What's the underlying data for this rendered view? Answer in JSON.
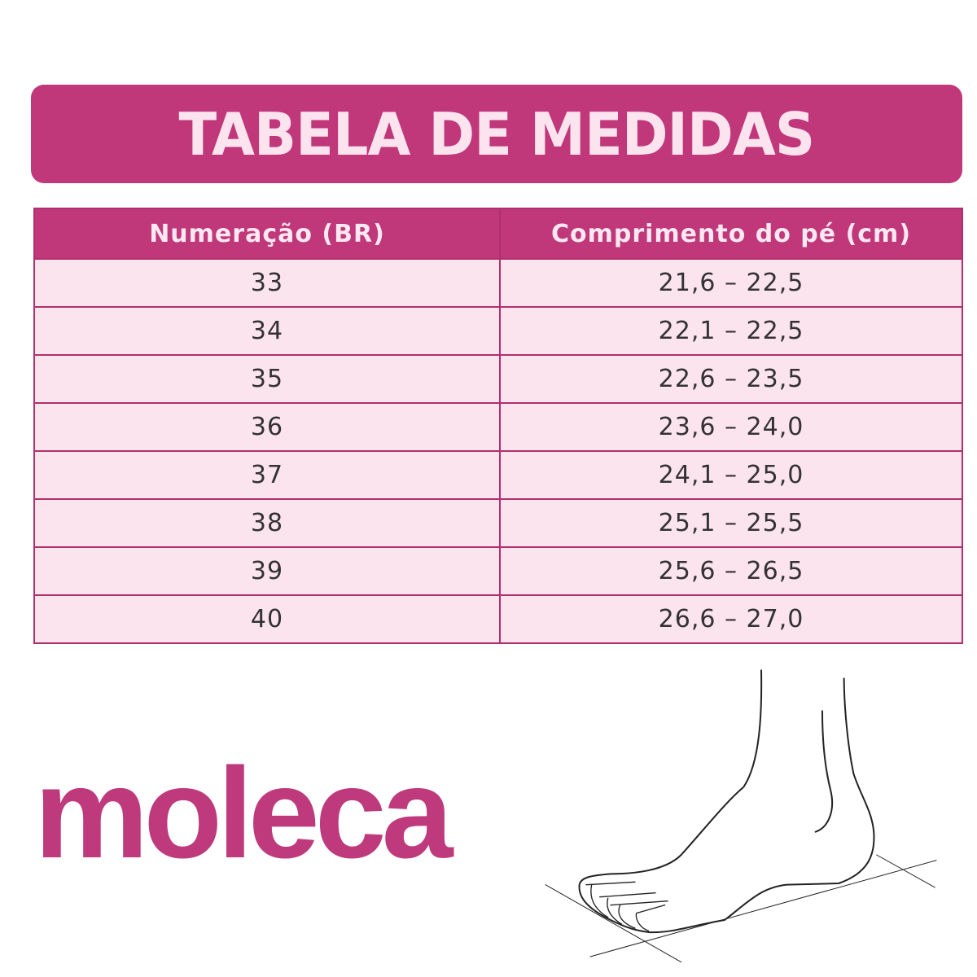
{
  "title": "TABELA DE MEDIDAS",
  "table": {
    "headers": [
      "Numeração (BR)",
      "Comprimento do pé (cm)"
    ],
    "rows": [
      [
        "33",
        "21,6 – 22,5"
      ],
      [
        "34",
        "22,1 – 22,5"
      ],
      [
        "35",
        "22,6 – 23,5"
      ],
      [
        "36",
        "23,6 – 24,0"
      ],
      [
        "37",
        "24,1 – 25,0"
      ],
      [
        "38",
        "25,1 – 25,5"
      ],
      [
        "39",
        "25,6 – 26,5"
      ],
      [
        "40",
        "26,6 – 27,0"
      ]
    ]
  },
  "brand": "moleca",
  "illustration": "foot-measurement-drawing",
  "colors": {
    "accent": "#c0377a",
    "row_bg": "#fce4ef",
    "title_text": "#fce4ef"
  }
}
